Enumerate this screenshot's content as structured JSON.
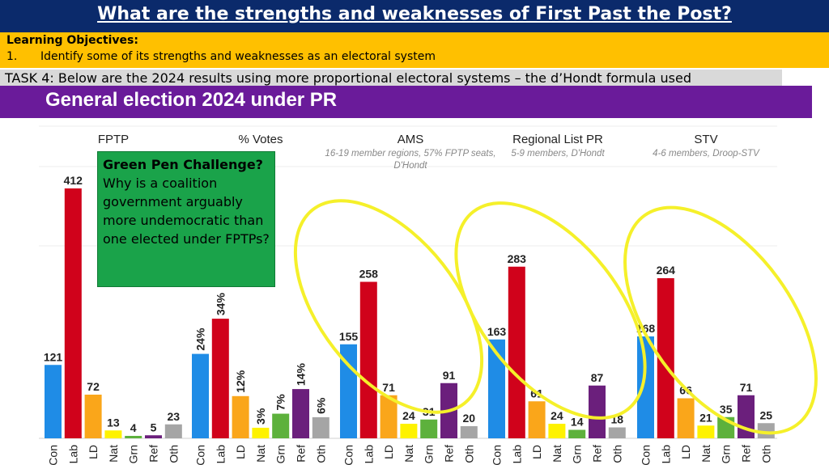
{
  "slide": {
    "title": "What are the strengths and weaknesses of First Past the Post?",
    "objectives_title": "Learning Objectives:",
    "objective_number": "1.",
    "objective_text": "Identify some of its strengths and weaknesses as an electoral system",
    "task": "TASK 4: Below are the 2024  results using more proportional electoral systems – the d’Hondt formula used",
    "banner": "General election 2024 under PR",
    "green_heading": "Green Pen Challenge?",
    "green_body": "Why is a coalition government arguably more undemocratic than one elected under FPTPs?"
  },
  "colors": {
    "title_bg": "#0b2a6b",
    "objectives_bg": "#ffc000",
    "banner_bg": "#6a1b9a",
    "green_box": "#1aa34a",
    "highlight_ellipse": "#f5f02a"
  },
  "chart_data": [
    {
      "type": "bar",
      "title": "FPTP",
      "subtitle": "",
      "categories": [
        "Con",
        "Lab",
        "LD",
        "Nat",
        "Grn",
        "Ref",
        "Oth"
      ],
      "values": [
        121,
        412,
        72,
        13,
        4,
        5,
        23
      ],
      "labels": [
        "121",
        "412",
        "72",
        "13",
        "4",
        "5",
        "23"
      ],
      "colors": [
        "#1f8ce6",
        "#d0021b",
        "#faa61a",
        "#fef200",
        "#5db13c",
        "#6b1f7c",
        "#a5a5a5"
      ],
      "ylim": [
        0,
        420
      ]
    },
    {
      "type": "bar",
      "title": "% Votes",
      "subtitle": "",
      "categories": [
        "Con",
        "Lab",
        "LD",
        "Nat",
        "Grn",
        "Ref",
        "Oth"
      ],
      "values": [
        24,
        34,
        12,
        3,
        7,
        14,
        6
      ],
      "labels": [
        "24%",
        "34%",
        "12%",
        "3%",
        "7%",
        "14%",
        "6%"
      ],
      "colors": [
        "#1f8ce6",
        "#d0021b",
        "#faa61a",
        "#fef200",
        "#5db13c",
        "#6b1f7c",
        "#a5a5a5"
      ],
      "ylim": [
        0,
        60
      ]
    },
    {
      "type": "bar",
      "title": "AMS",
      "subtitle": "16-19 member regions, 57% FPTP seats, D'Hondt",
      "categories": [
        "Con",
        "Lab",
        "LD",
        "Nat",
        "Grn",
        "Ref",
        "Oth"
      ],
      "values": [
        155,
        258,
        71,
        24,
        31,
        91,
        20
      ],
      "labels": [
        "155",
        "258",
        "71",
        "24",
        "31",
        "91",
        "20"
      ],
      "colors": [
        "#1f8ce6",
        "#d0021b",
        "#faa61a",
        "#fef200",
        "#5db13c",
        "#6b1f7c",
        "#a5a5a5"
      ],
      "ylim": [
        0,
        420
      ]
    },
    {
      "type": "bar",
      "title": "Regional List PR",
      "subtitle": "5-9 members, D'Hondt",
      "categories": [
        "Con",
        "Lab",
        "LD",
        "Nat",
        "Grn",
        "Ref",
        "Oth"
      ],
      "values": [
        163,
        283,
        61,
        24,
        14,
        87,
        18
      ],
      "labels": [
        "163",
        "283",
        "61",
        "24",
        "14",
        "87",
        "18"
      ],
      "colors": [
        "#1f8ce6",
        "#d0021b",
        "#faa61a",
        "#fef200",
        "#5db13c",
        "#6b1f7c",
        "#a5a5a5"
      ],
      "ylim": [
        0,
        420
      ]
    },
    {
      "type": "bar",
      "title": "STV",
      "subtitle": "4-6 members, Droop-STV",
      "categories": [
        "Con",
        "Lab",
        "LD",
        "Nat",
        "Grn",
        "Ref",
        "Oth"
      ],
      "values": [
        168,
        264,
        66,
        21,
        35,
        71,
        25
      ],
      "labels": [
        "168",
        "264",
        "66",
        "21",
        "35",
        "71",
        "25"
      ],
      "colors": [
        "#1f8ce6",
        "#d0021b",
        "#faa61a",
        "#fef200",
        "#5db13c",
        "#6b1f7c",
        "#a5a5a5"
      ],
      "ylim": [
        0,
        420
      ]
    }
  ]
}
